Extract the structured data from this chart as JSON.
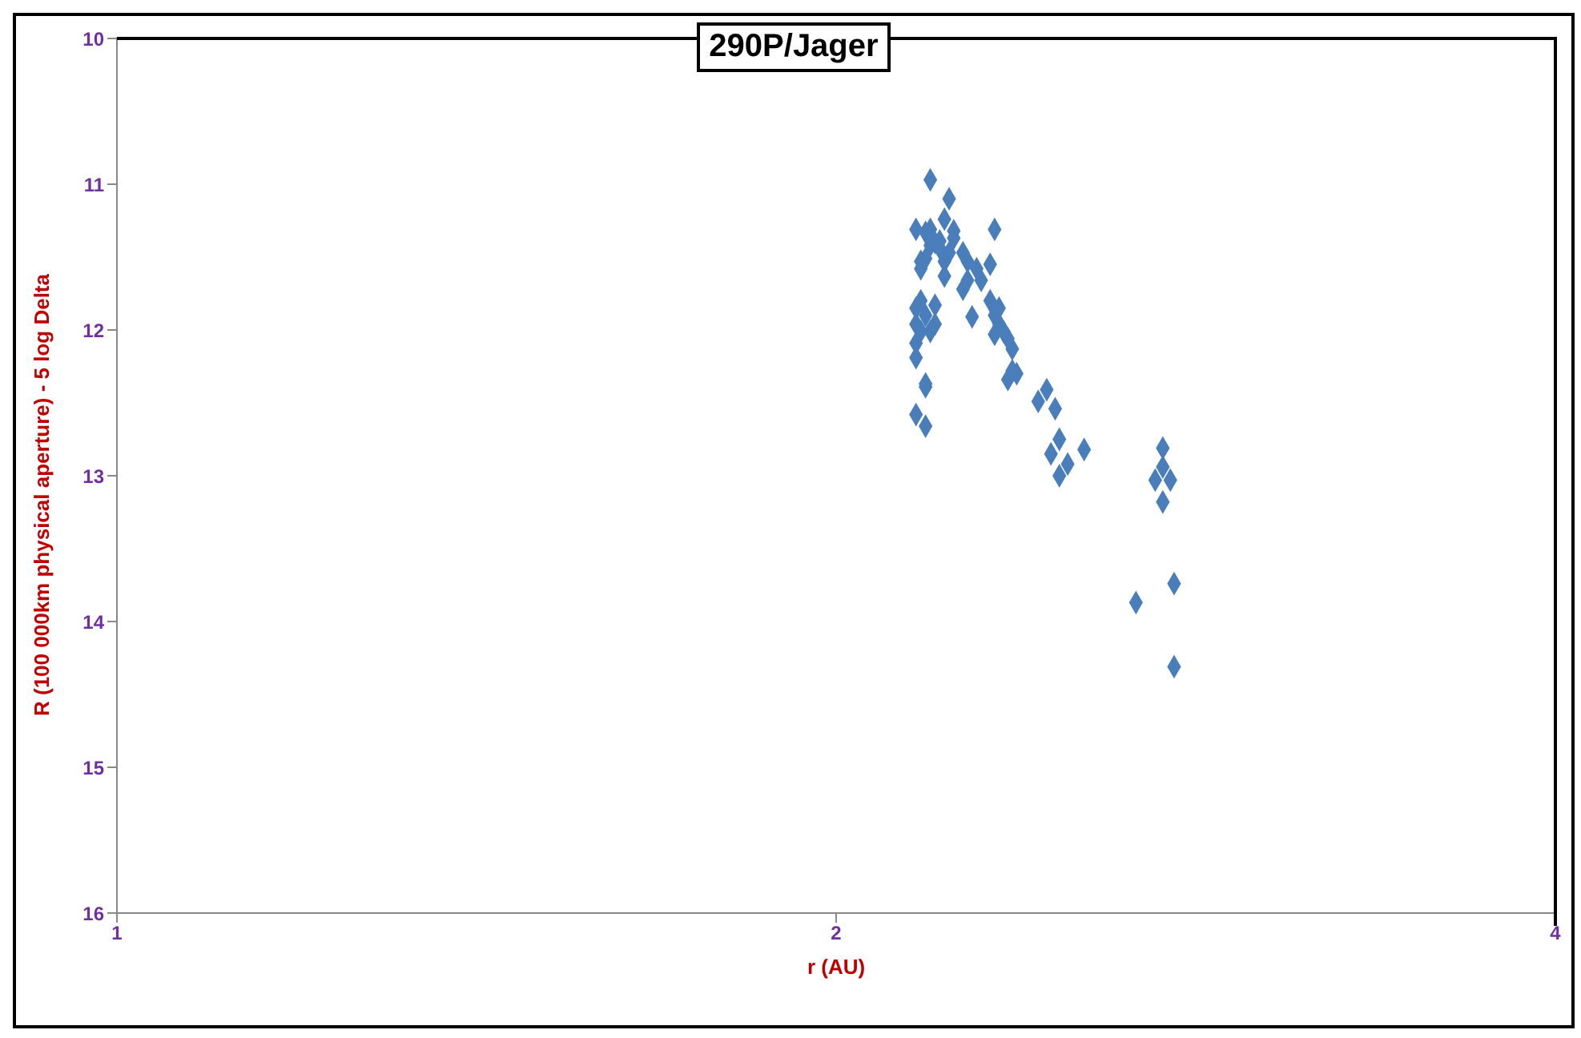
{
  "chart_data": {
    "type": "scatter",
    "title": "290P/Jager",
    "xlabel": "r (AU)",
    "ylabel": "R (100 000km physical aperture) - 5 log Delta",
    "x": [
      2.19,
      2.16,
      2.18,
      2.19,
      2.22,
      2.24,
      2.2,
      2.19,
      2.17,
      2.18,
      2.21,
      2.23,
      2.17,
      2.17,
      2.16,
      2.18,
      2.16,
      2.17,
      2.16,
      2.19,
      2.2,
      2.2,
      2.16,
      2.18,
      2.18,
      2.16,
      2.18,
      2.21,
      2.22,
      2.24,
      2.26,
      2.27,
      2.29,
      2.27,
      2.26,
      2.3,
      2.33,
      2.32,
      2.28,
      2.32,
      2.33,
      2.34,
      2.34,
      2.33,
      2.35,
      2.36,
      2.37,
      2.37,
      2.36,
      2.38,
      2.43,
      2.45,
      2.47,
      2.46,
      2.48,
      2.5,
      2.48,
      2.54,
      2.74,
      2.74,
      2.72,
      2.76,
      2.74,
      2.67,
      2.77,
      2.77,
      2.23,
      2.22
    ],
    "values": [
      10.97,
      11.31,
      11.33,
      11.31,
      11.24,
      11.37,
      11.4,
      11.42,
      11.53,
      11.51,
      11.44,
      11.47,
      11.58,
      11.8,
      11.85,
      11.9,
      11.96,
      12.01,
      12.09,
      12.01,
      11.96,
      11.83,
      12.19,
      12.37,
      12.39,
      12.58,
      12.66,
      11.39,
      11.63,
      11.32,
      11.47,
      11.53,
      11.58,
      11.66,
      11.72,
      11.66,
      11.31,
      11.55,
      11.91,
      11.8,
      11.9,
      11.85,
      11.96,
      12.03,
      12.01,
      12.06,
      12.13,
      12.28,
      12.34,
      12.3,
      12.49,
      12.41,
      12.54,
      12.85,
      12.75,
      12.92,
      13.0,
      12.82,
      12.81,
      12.94,
      13.03,
      13.03,
      13.18,
      13.87,
      13.74,
      14.31,
      11.1,
      11.53
    ],
    "color": "#4a7ebb",
    "marker": "diamond",
    "log": "x",
    "grid": false,
    "legend": false,
    "xlim": [
      1,
      4
    ],
    "xticks": [
      1,
      2,
      4
    ],
    "ylim": [
      16,
      10
    ],
    "yticks": [
      10,
      11,
      12,
      13,
      14,
      15,
      16
    ]
  }
}
